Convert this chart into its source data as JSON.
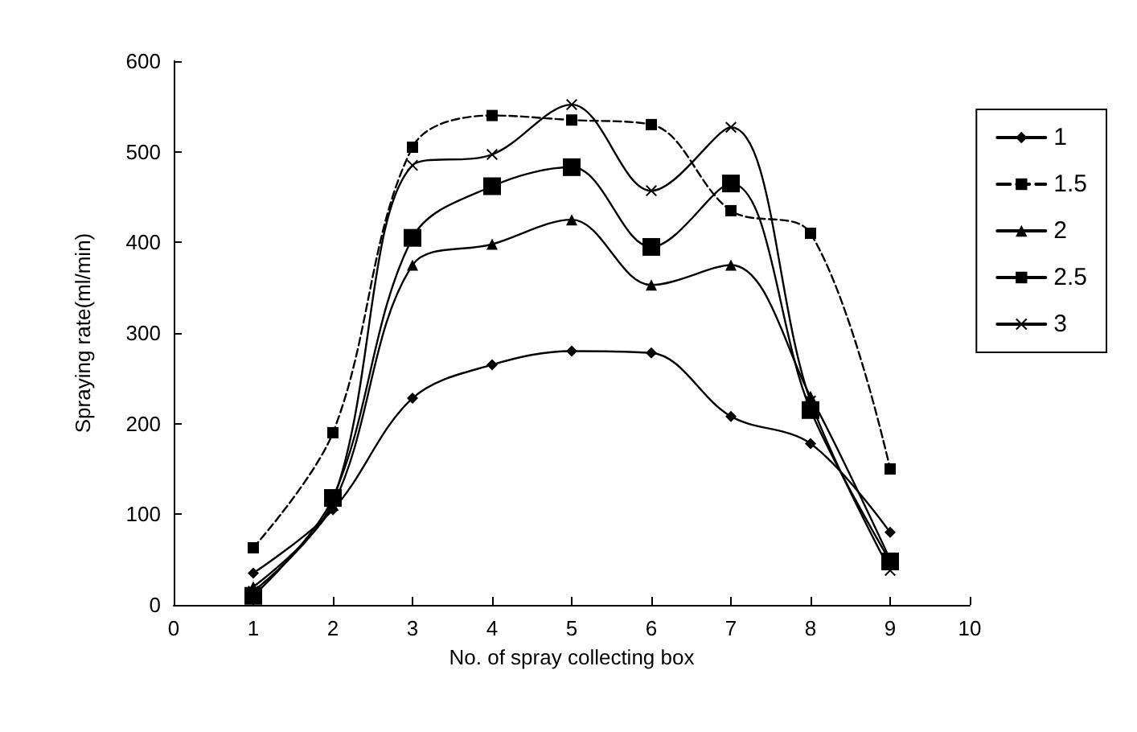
{
  "chart_data": {
    "type": "line",
    "xlabel": "No. of spray collecting box",
    "ylabel": "Spraying rate(ml/min)",
    "x": [
      1,
      2,
      3,
      4,
      5,
      6,
      7,
      8,
      9
    ],
    "xlim": [
      0,
      10
    ],
    "xticks": [
      0,
      1,
      2,
      3,
      4,
      5,
      6,
      7,
      8,
      9,
      10
    ],
    "ylim": [
      0,
      600
    ],
    "yticks": [
      0,
      100,
      200,
      300,
      400,
      500,
      600
    ],
    "grid": false,
    "legend": "right",
    "series": [
      {
        "name": "1",
        "color": "#000000",
        "marker": "diamond",
        "values": [
          35,
          105,
          228,
          265,
          280,
          278,
          208,
          178,
          80
        ]
      },
      {
        "name": "1.5",
        "color": "#000000",
        "marker": "square",
        "line_style": "dashed",
        "values": [
          63,
          190,
          505,
          540,
          535,
          530,
          435,
          410,
          150
        ]
      },
      {
        "name": "2",
        "color": "#000000",
        "marker": "triangle",
        "values": [
          20,
          110,
          375,
          398,
          425,
          353,
          375,
          230,
          50
        ]
      },
      {
        "name": "2.5",
        "color": "#000000",
        "marker": "square",
        "values": [
          10,
          118,
          405,
          462,
          483,
          395,
          465,
          215,
          48
        ]
      },
      {
        "name": "3",
        "color": "#000000",
        "marker": "cross",
        "values": [
          15,
          115,
          485,
          497,
          552,
          457,
          527,
          225,
          38
        ]
      }
    ]
  }
}
